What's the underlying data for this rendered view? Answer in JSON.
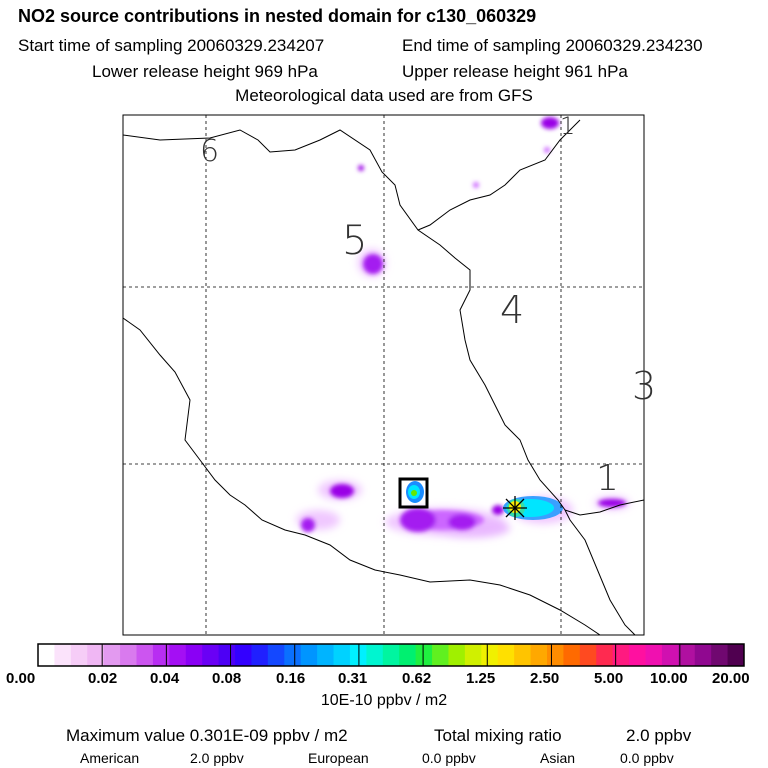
{
  "header": {
    "title": "NO2 source contributions in nested domain for c130_060329",
    "start_label": "Start time of sampling 20060329.234207",
    "end_label": "End time of sampling 20060329.234230",
    "lower_label": "Lower release height  969 hPa",
    "upper_label": "Upper release height  961 hPa",
    "met_label": "Meteorological data used are from GFS"
  },
  "map": {
    "region_labels": [
      "1",
      "3",
      "4",
      "5",
      "6",
      "1"
    ],
    "colors": {
      "coast": "#000000",
      "grid": "#000000",
      "plume_light": "#f0c8ff",
      "plume_mid": "#cc66ff",
      "plume_strong": "#9a00e6",
      "cyan": "#00e5ff",
      "blue": "#1a8cff",
      "yellow": "#ffee00",
      "green": "#66e600"
    },
    "marker_icon": "star-cross-icon",
    "box_icon": "square-marker-icon"
  },
  "colorbar": {
    "colors": [
      "#ffffff",
      "#fbe3fb",
      "#f6cdf7",
      "#f0b7f4",
      "#e39af0",
      "#d97aee",
      "#cc55f0",
      "#b82ef2",
      "#a40ff4",
      "#8a00f5",
      "#6a00f5",
      "#4d00f5",
      "#3300ff",
      "#2020ff",
      "#1448ff",
      "#0a70ff",
      "#0095ff",
      "#00b4ff",
      "#00d2ff",
      "#00f0ff",
      "#00f5d0",
      "#00f5a0",
      "#00f070",
      "#20f040",
      "#60f020",
      "#a0f000",
      "#d0f000",
      "#f0f000",
      "#ffe000",
      "#ffc400",
      "#ffa800",
      "#ff8c00",
      "#ff6a00",
      "#ff4a20",
      "#ff2a50",
      "#ff1a80",
      "#ff10a0",
      "#f010b0",
      "#d010b0",
      "#b010a0",
      "#900890",
      "#700870",
      "#500050"
    ],
    "tick_labels": [
      "0.00",
      "0.02",
      "0.04",
      "0.08",
      "0.16",
      "0.31",
      "0.62",
      "1.25",
      "2.50",
      "5.00",
      "10.00",
      "20.00"
    ],
    "unit": "10E-10 ppbv / m2"
  },
  "footer": {
    "max_label": "Maximum value  0.301E-09 ppbv / m2",
    "total_label": "Total mixing ratio",
    "total_value": "2.0 ppbv",
    "american_label": "American",
    "american_value": "2.0 ppbv",
    "european_label": "European",
    "european_value": "0.0 ppbv",
    "asian_label": "Asian",
    "asian_value": "0.0 ppbv"
  }
}
